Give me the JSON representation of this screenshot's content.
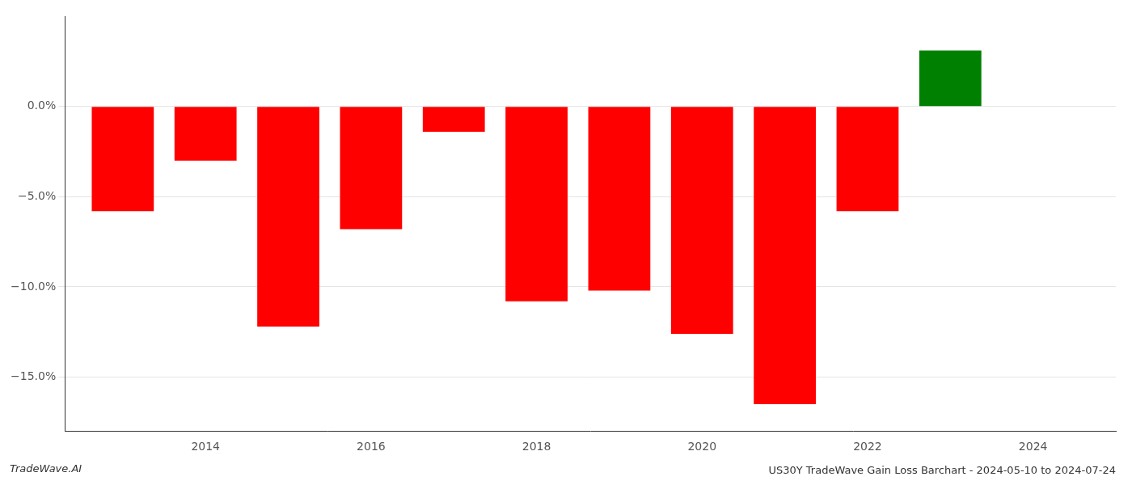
{
  "chart_data": {
    "type": "bar",
    "title": "US30Y TradeWave Gain Loss Barchart - 2024-05-10 to 2024-07-24",
    "annotations": [
      {
        "text": "TradeWave.AI"
      }
    ],
    "x": [
      2013,
      2014,
      2015,
      2016,
      2017,
      2018,
      2019,
      2020,
      2021,
      2022,
      2023
    ],
    "values": [
      -5.8,
      -3.0,
      -12.2,
      -6.8,
      -1.4,
      -10.8,
      -10.2,
      -12.6,
      -16.5,
      -5.8,
      3.1
    ],
    "colors": [
      "#ff0000",
      "#ff0000",
      "#ff0000",
      "#ff0000",
      "#ff0000",
      "#ff0000",
      "#ff0000",
      "#ff0000",
      "#ff0000",
      "#ff0000",
      "#008000"
    ],
    "xlim": [
      2012.3,
      2025.0
    ],
    "xticks": [
      2014,
      2016,
      2018,
      2020,
      2022,
      2024
    ],
    "ylim": [
      -18,
      5
    ],
    "yticks": [
      {
        "value": 0.0,
        "label": "0.0%"
      },
      {
        "value": -5.0,
        "label": "−5.0%"
      },
      {
        "value": -10.0,
        "label": "−10.0%"
      },
      {
        "value": -15.0,
        "label": "−15.0%"
      }
    ],
    "grid": "y"
  }
}
